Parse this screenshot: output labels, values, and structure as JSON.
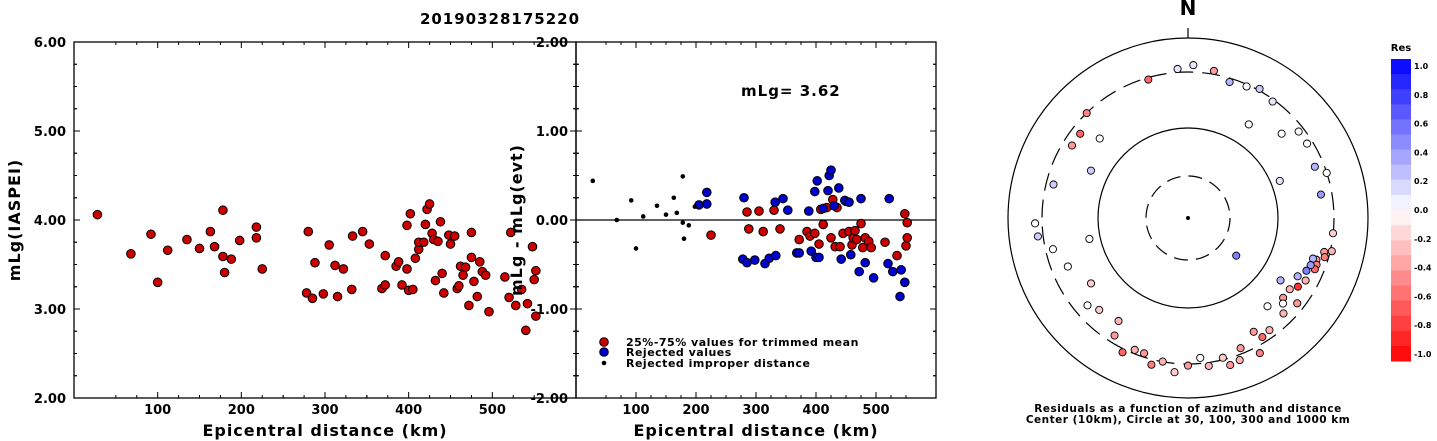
{
  "title": "20190328175220",
  "chart_data": [
    {
      "type": "scatter",
      "xlabel": "Epicentral distance (km)",
      "ylabel": "mLg(IASPEI)",
      "xlim": [
        0,
        600
      ],
      "ylim": [
        2.0,
        6.0
      ],
      "xticks": [
        "100",
        "200",
        "300",
        "400",
        "500"
      ],
      "yticks": [
        "2.00",
        "3.00",
        "4.00",
        "5.00",
        "6.00"
      ],
      "points": [
        [
          28,
          4.06
        ],
        [
          68,
          3.62
        ],
        [
          92,
          3.84
        ],
        [
          100,
          3.3
        ],
        [
          112,
          3.66
        ],
        [
          135,
          3.78
        ],
        [
          150,
          3.68
        ],
        [
          163,
          3.87
        ],
        [
          168,
          3.7
        ],
        [
          178,
          4.11
        ],
        [
          178,
          3.59
        ],
        [
          180,
          3.41
        ],
        [
          188,
          3.56
        ],
        [
          198,
          3.77
        ],
        [
          218,
          3.8
        ],
        [
          218,
          3.92
        ],
        [
          225,
          3.45
        ],
        [
          278,
          3.18
        ],
        [
          280,
          3.87
        ],
        [
          285,
          3.12
        ],
        [
          288,
          3.52
        ],
        [
          298,
          3.17
        ],
        [
          305,
          3.72
        ],
        [
          312,
          3.49
        ],
        [
          315,
          3.14
        ],
        [
          322,
          3.45
        ],
        [
          332,
          3.22
        ],
        [
          333,
          3.82
        ],
        [
          345,
          3.87
        ],
        [
          353,
          3.73
        ],
        [
          368,
          3.23
        ],
        [
          372,
          3.27
        ],
        [
          372,
          3.6
        ],
        [
          385,
          3.48
        ],
        [
          388,
          3.53
        ],
        [
          392,
          3.27
        ],
        [
          398,
          3.94
        ],
        [
          398,
          3.45
        ],
        [
          400,
          3.21
        ],
        [
          402,
          4.07
        ],
        [
          405,
          3.22
        ],
        [
          408,
          3.57
        ],
        [
          412,
          3.67
        ],
        [
          412,
          3.75
        ],
        [
          418,
          3.75
        ],
        [
          420,
          3.95
        ],
        [
          422,
          4.12
        ],
        [
          425,
          4.18
        ],
        [
          428,
          3.85
        ],
        [
          430,
          3.78
        ],
        [
          432,
          3.32
        ],
        [
          435,
          3.76
        ],
        [
          438,
          3.98
        ],
        [
          440,
          3.4
        ],
        [
          442,
          3.18
        ],
        [
          448,
          3.83
        ],
        [
          450,
          3.73
        ],
        [
          455,
          3.82
        ],
        [
          458,
          3.23
        ],
        [
          460,
          3.26
        ],
        [
          462,
          3.48
        ],
        [
          465,
          3.38
        ],
        [
          468,
          3.47
        ],
        [
          472,
          3.04
        ],
        [
          475,
          3.86
        ],
        [
          475,
          3.58
        ],
        [
          478,
          3.31
        ],
        [
          482,
          3.14
        ],
        [
          485,
          3.53
        ],
        [
          488,
          3.42
        ],
        [
          492,
          3.38
        ],
        [
          496,
          2.97
        ],
        [
          515,
          3.36
        ],
        [
          520,
          3.13
        ],
        [
          522,
          3.86
        ],
        [
          528,
          3.04
        ],
        [
          535,
          3.22
        ],
        [
          540,
          2.76
        ],
        [
          542,
          3.06
        ],
        [
          548,
          3.7
        ],
        [
          550,
          3.33
        ],
        [
          552,
          3.43
        ],
        [
          552,
          2.92
        ]
      ]
    },
    {
      "type": "scatter",
      "xlabel": "Epicentral distance (km)",
      "ylabel": "mLg - mLg(evt)",
      "xlim": [
        0,
        600
      ],
      "ylim": [
        -2.0,
        2.0
      ],
      "xticks": [
        "100",
        "200",
        "300",
        "400",
        "500"
      ],
      "yticks": [
        "-2.00",
        "-1.00",
        "0.00",
        "1.00",
        "2.00"
      ],
      "annotation": "mLg= 3.62",
      "reference_line": 0,
      "series": [
        {
          "name": "25%-75% values for trimmed mean",
          "color": "#cc0000",
          "marker": "circle",
          "points": [
            [
              225,
              -0.17
            ],
            [
              285,
              0.09
            ],
            [
              288,
              -0.1
            ],
            [
              305,
              0.1
            ],
            [
              312,
              -0.13
            ],
            [
              330,
              0.11
            ],
            [
              340,
              -0.1
            ],
            [
              372,
              -0.22
            ],
            [
              385,
              -0.13
            ],
            [
              390,
              -0.18
            ],
            [
              398,
              -0.15
            ],
            [
              405,
              -0.27
            ],
            [
              408,
              0.12
            ],
            [
              412,
              -0.05
            ],
            [
              418,
              0.14
            ],
            [
              425,
              -0.2
            ],
            [
              428,
              0.23
            ],
            [
              432,
              -0.3
            ],
            [
              435,
              0.14
            ],
            [
              440,
              -0.3
            ],
            [
              445,
              -0.15
            ],
            [
              450,
              0.21
            ],
            [
              455,
              -0.13
            ],
            [
              460,
              -0.28
            ],
            [
              462,
              -0.2
            ],
            [
              465,
              -0.12
            ],
            [
              468,
              -0.22
            ],
            [
              475,
              -0.04
            ],
            [
              478,
              -0.31
            ],
            [
              482,
              -0.2
            ],
            [
              488,
              -0.24
            ],
            [
              492,
              -0.31
            ],
            [
              515,
              -0.25
            ],
            [
              535,
              -0.4
            ],
            [
              548,
              0.07
            ],
            [
              550,
              -0.29
            ],
            [
              552,
              -0.2
            ],
            [
              552,
              -0.03
            ]
          ]
        },
        {
          "name": "Rejected values",
          "color": "#0000cc",
          "marker": "circle",
          "points": [
            [
              205,
              0.17
            ],
            [
              218,
              0.31
            ],
            [
              218,
              0.18
            ],
            [
              278,
              -0.44
            ],
            [
              280,
              0.25
            ],
            [
              285,
              -0.48
            ],
            [
              298,
              -0.45
            ],
            [
              315,
              -0.49
            ],
            [
              322,
              -0.43
            ],
            [
              332,
              0.2
            ],
            [
              333,
              -0.4
            ],
            [
              345,
              0.24
            ],
            [
              353,
              0.11
            ],
            [
              368,
              -0.37
            ],
            [
              372,
              -0.37
            ],
            [
              388,
              0.1
            ],
            [
              392,
              -0.35
            ],
            [
              398,
              0.32
            ],
            [
              400,
              -0.42
            ],
            [
              402,
              0.44
            ],
            [
              405,
              -0.42
            ],
            [
              412,
              0.13
            ],
            [
              420,
              0.33
            ],
            [
              422,
              0.5
            ],
            [
              425,
              0.56
            ],
            [
              430,
              0.16
            ],
            [
              438,
              0.36
            ],
            [
              442,
              -0.44
            ],
            [
              448,
              0.22
            ],
            [
              455,
              0.2
            ],
            [
              458,
              -0.39
            ],
            [
              472,
              -0.58
            ],
            [
              475,
              0.24
            ],
            [
              482,
              -0.48
            ],
            [
              496,
              -0.65
            ],
            [
              520,
              -0.49
            ],
            [
              522,
              0.24
            ],
            [
              528,
              -0.58
            ],
            [
              540,
              -0.86
            ],
            [
              542,
              -0.56
            ],
            [
              548,
              -0.7
            ]
          ]
        },
        {
          "name": "Rejected improper distance",
          "color": "#000000",
          "marker": "dot",
          "points": [
            [
              28,
              0.44
            ],
            [
              68,
              0.0
            ],
            [
              92,
              0.22
            ],
            [
              100,
              -0.32
            ],
            [
              112,
              0.04
            ],
            [
              135,
              0.16
            ],
            [
              150,
              0.06
            ],
            [
              163,
              0.25
            ],
            [
              168,
              0.08
            ],
            [
              178,
              0.49
            ],
            [
              178,
              -0.03
            ],
            [
              180,
              -0.21
            ],
            [
              188,
              -0.06
            ],
            [
              198,
              0.15
            ]
          ]
        }
      ]
    },
    {
      "type": "polar",
      "orientation_label": "N",
      "caption_line1": "Residuals as a function of azimuth and distance",
      "caption_line2": "Center (10km), Circle at 30, 100, 300 and 1000 km",
      "rings_km": [
        30,
        100,
        300,
        1000
      ],
      "colorbar": {
        "title": "Res",
        "ticks": [
          "1.0",
          "0.8",
          "0.6",
          "0.4",
          "0.2",
          "0.0",
          "-0.2",
          "-0.4",
          "-0.6",
          "-0.8",
          "-1.0"
        ],
        "range": [
          -1.0,
          1.0
        ],
        "positive_color": "#0000ff",
        "negative_color": "#ff0000"
      },
      "points": [
        [
          -16,
          0.8,
          -0.6
        ],
        [
          -4,
          0.83,
          0.1
        ],
        [
          2,
          0.85,
          0.1
        ],
        [
          10,
          0.83,
          -0.4
        ],
        [
          17,
          0.79,
          0.3
        ],
        [
          24,
          0.8,
          0.0
        ],
        [
          29,
          0.82,
          0.2
        ],
        [
          36,
          0.8,
          0.1
        ],
        [
          33,
          0.62,
          0.0
        ],
        [
          48,
          0.7,
          0.0
        ],
        [
          52,
          0.78,
          0.0
        ],
        [
          58,
          0.78,
          0.0
        ],
        [
          68,
          0.76,
          0.3
        ],
        [
          72,
          0.81,
          0.0
        ],
        [
          80,
          0.75,
          0.4
        ],
        [
          68,
          0.55,
          0.1
        ],
        [
          96,
          0.81,
          -0.2
        ],
        [
          103,
          0.82,
          -0.3
        ],
        [
          104,
          0.78,
          -0.4
        ],
        [
          106,
          0.79,
          -0.5
        ],
        [
          108,
          0.75,
          -0.4
        ],
        [
          110,
          0.76,
          -0.5
        ],
        [
          112,
          0.76,
          -0.6
        ],
        [
          108,
          0.73,
          0.3
        ],
        [
          111,
          0.73,
          0.4
        ],
        [
          114,
          0.72,
          0.5
        ],
        [
          118,
          0.69,
          0.3
        ],
        [
          118,
          0.74,
          -0.3
        ],
        [
          122,
          0.72,
          -0.8
        ],
        [
          125,
          0.69,
          -0.3
        ],
        [
          128,
          0.77,
          -0.4
        ],
        [
          130,
          0.69,
          -0.4
        ],
        [
          132,
          0.71,
          0.0
        ],
        [
          135,
          0.75,
          -0.3
        ],
        [
          124,
          0.62,
          0.3
        ],
        [
          138,
          0.66,
          0.0
        ],
        [
          144,
          0.77,
          -0.3
        ],
        [
          150,
          0.73,
          -0.4
        ],
        [
          148,
          0.78,
          -0.6
        ],
        [
          152,
          0.85,
          -0.5
        ],
        [
          158,
          0.78,
          -0.4
        ],
        [
          160,
          0.84,
          -0.3
        ],
        [
          164,
          0.85,
          -0.4
        ],
        [
          166,
          0.8,
          -0.2
        ],
        [
          172,
          0.83,
          -0.3
        ],
        [
          175,
          0.78,
          0.0
        ],
        [
          180,
          0.82,
          -0.4
        ],
        [
          185,
          0.86,
          -0.2
        ],
        [
          190,
          0.81,
          -0.3
        ],
        [
          194,
          0.84,
          -0.5
        ],
        [
          198,
          0.79,
          -0.4
        ],
        [
          202,
          0.79,
          -0.3
        ],
        [
          206,
          0.83,
          -0.6
        ],
        [
          212,
          0.77,
          -0.4
        ],
        [
          214,
          0.69,
          -0.3
        ],
        [
          224,
          0.71,
          -0.2
        ],
        [
          229,
          0.74,
          0.0
        ],
        [
          236,
          0.65,
          -0.2
        ],
        [
          248,
          0.72,
          0.0
        ],
        [
          257,
          0.77,
          0.0
        ],
        [
          268,
          0.85,
          0.0
        ],
        [
          258,
          0.56,
          0.0
        ],
        [
          263,
          0.84,
          0.2
        ],
        [
          284,
          0.77,
          0.2
        ],
        [
          296,
          0.6,
          0.2
        ],
        [
          302,
          0.76,
          -0.4
        ],
        [
          308,
          0.76,
          -0.6
        ],
        [
          312,
          0.66,
          0.0
        ],
        [
          316,
          0.81,
          -0.5
        ],
        [
          128,
          0.34,
          0.5
        ]
      ]
    }
  ]
}
